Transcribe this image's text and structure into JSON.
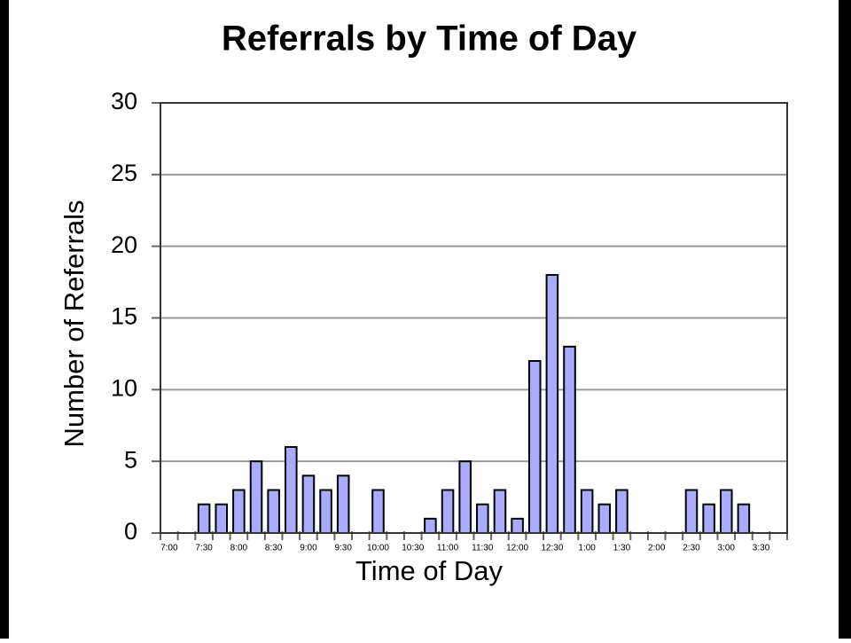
{
  "chart_data": {
    "type": "bar",
    "title": "Referrals by Time of Day",
    "x_label": "Time of Day",
    "y_label": "Number of Referrals",
    "categories": [
      "7:00",
      null,
      "7:30",
      null,
      "8:00",
      null,
      "8:30",
      null,
      "9:00",
      null,
      "9:30",
      null,
      "10:00",
      null,
      "10:30",
      null,
      "11:00",
      null,
      "11:30",
      null,
      "12:00",
      null,
      "12:30",
      null,
      "1:00",
      null,
      "1:30",
      null,
      "2:00",
      null,
      "2:30",
      null,
      "3:00",
      null,
      "3:30",
      null
    ],
    "values": [
      0,
      0,
      2,
      2,
      3,
      5,
      3,
      6,
      4,
      3,
      4,
      0,
      3,
      0,
      0,
      1,
      3,
      5,
      2,
      3,
      1,
      12,
      18,
      13,
      3,
      2,
      3,
      0,
      0,
      0,
      3,
      2,
      3,
      2,
      0,
      0
    ],
    "color": "#aaaaff",
    "ylim": [
      0,
      30
    ],
    "yticks": [
      0,
      5,
      10,
      15,
      20,
      25,
      30
    ],
    "grid": true
  }
}
